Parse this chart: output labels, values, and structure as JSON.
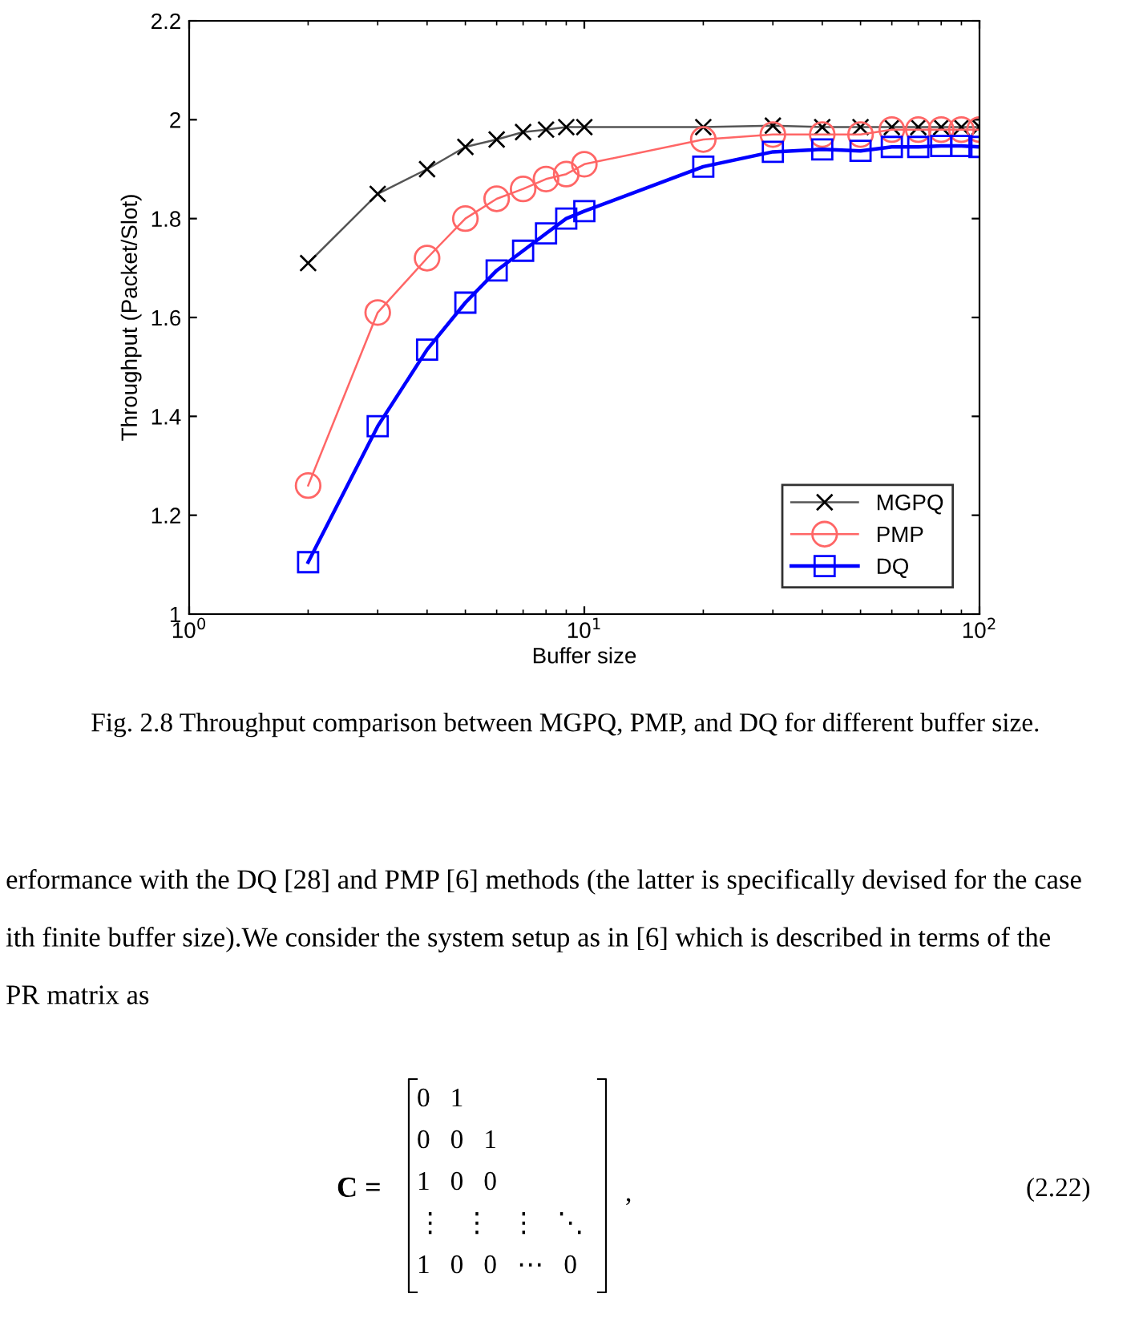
{
  "chart_data": {
    "type": "line",
    "xlabel": "Buffer size",
    "ylabel": "Throughput (Packet/Slot)",
    "log": "x",
    "xlim": [
      1,
      100
    ],
    "xticks": [
      {
        "value": 1,
        "label": "10$^{0}$"
      },
      {
        "value": 10,
        "label": "10$^{1}$"
      },
      {
        "value": 100,
        "label": "10$^{2}$"
      }
    ],
    "ylim": [
      1,
      2.2
    ],
    "yticks": [
      1,
      1.2,
      1.4,
      1.6,
      1.8,
      2,
      2.2
    ],
    "grid": false,
    "legend": "bottom right",
    "x": [
      2,
      3,
      4,
      5,
      6,
      7,
      8,
      9,
      10,
      20,
      30,
      40,
      50,
      60,
      70,
      80,
      90,
      100
    ],
    "series": [
      {
        "name": "MGPQ",
        "color": "#555555",
        "marker": "cross",
        "values": [
          1.71,
          1.85,
          1.9,
          1.945,
          1.96,
          1.975,
          1.98,
          1.985,
          1.985,
          1.985,
          1.988,
          1.985,
          1.985,
          1.985,
          1.985,
          1.985,
          1.985,
          1.985
        ]
      },
      {
        "name": "PMP",
        "color": "#ff6666",
        "marker": "circle",
        "values": [
          1.26,
          1.61,
          1.72,
          1.8,
          1.84,
          1.86,
          1.88,
          1.89,
          1.91,
          1.96,
          1.97,
          1.97,
          1.97,
          1.98,
          1.98,
          1.98,
          1.98,
          1.98
        ]
      },
      {
        "name": "DQ",
        "color": "#0000ff",
        "marker": "square",
        "values": [
          1.105,
          1.38,
          1.535,
          1.63,
          1.695,
          1.735,
          1.77,
          1.8,
          1.815,
          1.905,
          1.935,
          1.94,
          1.937,
          1.945,
          1.945,
          1.947,
          1.947,
          1.945
        ]
      }
    ],
    "annotations": [
      "Fig. 2.8 Throughput comparison between MGPQ, PMP, and DQ for different buffer size.",
      "erformance with the DQ [28] and PMP [6] methods (the latter is specifically devised for the case",
      "ith finite buffer size).We consider the system setup as in [6] which is described in terms of the",
      "PR matrix as",
      "C =",
      "0   1",
      "0   0   1",
      "1   0   0",
      "⋮   ⋮   ⋮   ⋱",
      "1   0   0   ⋯   0",
      ",",
      "(2.22)"
    ]
  }
}
